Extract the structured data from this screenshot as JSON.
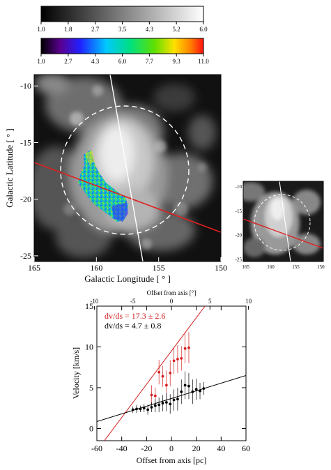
{
  "colorbar_gray": {
    "ticks": [
      "1.0",
      "1.8",
      "2.7",
      "3.5",
      "4.3",
      "5.2",
      "6.0"
    ]
  },
  "colorbar_rainbow": {
    "ticks": [
      "1.0",
      "2.7",
      "4.3",
      "6.0",
      "7.7",
      "9.3",
      "11.0"
    ]
  },
  "main_map": {
    "xlabel": "Galactic Longitude [ ° ]",
    "ylabel": "Galactic Latitude [ ° ]",
    "x_ticks": [
      "165",
      "160",
      "155",
      "150"
    ],
    "y_ticks": [
      "-10",
      "-15",
      "-20",
      "-25"
    ],
    "xlim": [
      165,
      150
    ],
    "ylim": [
      -25.5,
      -9
    ],
    "colors": {
      "cut_line": "#e02020",
      "axis_line": "#ffffff",
      "circle": "#ffffff"
    }
  },
  "inset_map": {
    "x_ticks": [
      "165",
      "160",
      "155",
      "150"
    ],
    "y_ticks": [
      "-10",
      "-15",
      "-20",
      "-25"
    ]
  },
  "chart_data": {
    "type": "scatter",
    "xlabel": "Offset from axis [pc]",
    "ylabel": "Velocity [km/s]",
    "top_xlabel": "Offset from axis [°]",
    "xlim": [
      -60,
      60
    ],
    "ylim": [
      -1.5,
      15
    ],
    "x_ticks": [
      "-60",
      "-40",
      "-20",
      "0",
      "20",
      "40",
      "60"
    ],
    "top_ticks": [
      "-10",
      "-5",
      "0",
      "5",
      "10"
    ],
    "y_ticks": [
      "0",
      "5",
      "10",
      "15"
    ],
    "annotations": [
      {
        "text": "dv/ds = 17.3 ± 2.6",
        "color": "#d42020"
      },
      {
        "text": "dv/ds = 4.7 ± 0.8",
        "color": "#000000"
      }
    ],
    "series": [
      {
        "color": "#d42020",
        "x": [
          -16,
          -13,
          -10,
          -7,
          -4,
          -1,
          2,
          5,
          8,
          11,
          14
        ],
        "y": [
          4.1,
          4.0,
          6.9,
          6.4,
          5.3,
          6.8,
          8.3,
          8.5,
          8.6,
          9.8,
          9.9
        ],
        "err": [
          1.2,
          1.0,
          1.5,
          1.3,
          1.8,
          1.6,
          1.6,
          1.7,
          1.5,
          1.8,
          1.9
        ],
        "fit": {
          "x0": -54,
          "y0": -1.5,
          "x1": 27,
          "y1": 15
        }
      },
      {
        "color": "#000000",
        "x": [
          -31,
          -28,
          -25,
          -22,
          -19,
          -16,
          -13,
          -10,
          -7,
          -4,
          -1,
          2,
          5,
          8,
          11,
          14,
          17,
          20,
          23,
          26
        ],
        "y": [
          2.3,
          2.4,
          2.4,
          2.5,
          2.3,
          2.6,
          2.8,
          2.9,
          3.1,
          3.2,
          3.0,
          3.5,
          3.6,
          4.5,
          5.3,
          5.2,
          4.5,
          4.8,
          4.6,
          4.9
        ],
        "err": [
          0.4,
          0.5,
          0.4,
          0.5,
          0.6,
          0.6,
          0.8,
          0.9,
          1.0,
          1.1,
          1.2,
          1.3,
          1.4,
          1.5,
          1.7,
          1.6,
          1.5,
          1.3,
          1.0,
          0.8
        ],
        "fit": {
          "x0": -60,
          "y0": 0.85,
          "x1": 60,
          "y1": 6.5
        }
      }
    ]
  }
}
